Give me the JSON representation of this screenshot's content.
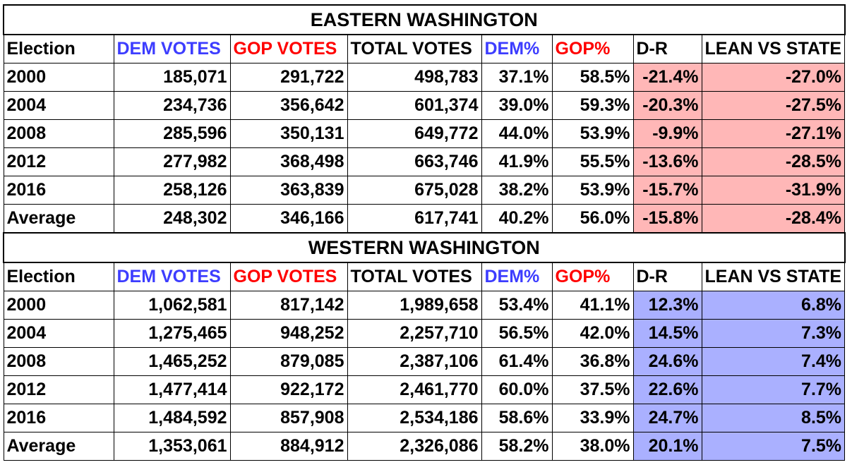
{
  "colors": {
    "dem_header": "#3d3dff",
    "gop_header": "#ff0000",
    "eastern_fill": "#ffb7b7",
    "western_fill": "#aab0ff"
  },
  "headers": {
    "election": "Election",
    "dem_votes": "DEM VOTES",
    "gop_votes": "GOP VOTES",
    "total_votes": "TOTAL VOTES",
    "dem_pct": "DEM%",
    "gop_pct": "GOP%",
    "d_r": "D-R",
    "lean": "LEAN VS STATE"
  },
  "sections": [
    {
      "title": "EASTERN WASHINGTON",
      "rows": [
        {
          "election": "2000",
          "dem": "185,071",
          "gop": "291,722",
          "total": "498,783",
          "dem_pct": "37.1%",
          "gop_pct": "58.5%",
          "dr": "-21.4%",
          "lean": "-27.0%"
        },
        {
          "election": "2004",
          "dem": "234,736",
          "gop": "356,642",
          "total": "601,374",
          "dem_pct": "39.0%",
          "gop_pct": "59.3%",
          "dr": "-20.3%",
          "lean": "-27.5%"
        },
        {
          "election": "2008",
          "dem": "285,596",
          "gop": "350,131",
          "total": "649,772",
          "dem_pct": "44.0%",
          "gop_pct": "53.9%",
          "dr": "-9.9%",
          "lean": "-27.1%"
        },
        {
          "election": "2012",
          "dem": "277,982",
          "gop": "368,498",
          "total": "663,746",
          "dem_pct": "41.9%",
          "gop_pct": "55.5%",
          "dr": "-13.6%",
          "lean": "-28.5%"
        },
        {
          "election": "2016",
          "dem": "258,126",
          "gop": "363,839",
          "total": "675,028",
          "dem_pct": "38.2%",
          "gop_pct": "53.9%",
          "dr": "-15.7%",
          "lean": "-31.9%"
        },
        {
          "election": "Average",
          "dem": "248,302",
          "gop": "346,166",
          "total": "617,741",
          "dem_pct": "40.2%",
          "gop_pct": "56.0%",
          "dr": "-15.8%",
          "lean": "-28.4%"
        }
      ]
    },
    {
      "title": "WESTERN WASHINGTON",
      "rows": [
        {
          "election": "2000",
          "dem": "1,062,581",
          "gop": "817,142",
          "total": "1,989,658",
          "dem_pct": "53.4%",
          "gop_pct": "41.1%",
          "dr": "12.3%",
          "lean": "6.8%"
        },
        {
          "election": "2004",
          "dem": "1,275,465",
          "gop": "948,252",
          "total": "2,257,710",
          "dem_pct": "56.5%",
          "gop_pct": "42.0%",
          "dr": "14.5%",
          "lean": "7.3%"
        },
        {
          "election": "2008",
          "dem": "1,465,252",
          "gop": "879,085",
          "total": "2,387,106",
          "dem_pct": "61.4%",
          "gop_pct": "36.8%",
          "dr": "24.6%",
          "lean": "7.4%"
        },
        {
          "election": "2012",
          "dem": "1,477,414",
          "gop": "922,172",
          "total": "2,461,770",
          "dem_pct": "60.0%",
          "gop_pct": "37.5%",
          "dr": "22.6%",
          "lean": "7.7%"
        },
        {
          "election": "2016",
          "dem": "1,484,592",
          "gop": "857,908",
          "total": "2,534,186",
          "dem_pct": "58.6%",
          "gop_pct": "33.9%",
          "dr": "24.7%",
          "lean": "8.5%"
        },
        {
          "election": "Average",
          "dem": "1,353,061",
          "gop": "884,912",
          "total": "2,326,086",
          "dem_pct": "58.2%",
          "gop_pct": "38.0%",
          "dr": "20.1%",
          "lean": "7.5%"
        }
      ]
    }
  ]
}
